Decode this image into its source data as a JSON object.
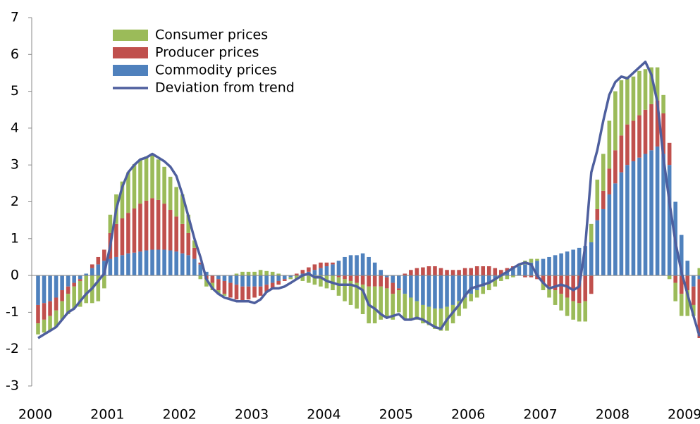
{
  "chart_data": {
    "type": "bar",
    "categories": [
      "2000",
      null,
      null,
      null,
      null,
      null,
      null,
      null,
      null,
      null,
      null,
      null,
      "2001",
      null,
      null,
      null,
      null,
      null,
      null,
      null,
      null,
      null,
      null,
      null,
      "2002",
      null,
      null,
      null,
      null,
      null,
      null,
      null,
      null,
      null,
      null,
      null,
      "2003",
      null,
      null,
      null,
      null,
      null,
      null,
      null,
      null,
      null,
      null,
      null,
      "2004",
      null,
      null,
      null,
      null,
      null,
      null,
      null,
      null,
      null,
      null,
      null,
      "2005",
      null,
      null,
      null,
      null,
      null,
      null,
      null,
      null,
      null,
      null,
      null,
      "2006",
      null,
      null,
      null,
      null,
      null,
      null,
      null,
      null,
      null,
      null,
      null,
      "2007",
      null,
      null,
      null,
      null,
      null,
      null,
      null,
      null,
      null,
      null,
      null,
      "2008",
      null,
      null,
      null,
      null,
      null,
      null,
      null,
      null,
      null,
      null,
      null,
      "2009",
      null,
      null
    ],
    "series": [
      {
        "name": "Consumer prices",
        "type": "bar",
        "color": "#9bbb59",
        "values": [
          -0.3,
          -0.35,
          -0.4,
          -0.45,
          -0.5,
          -0.55,
          -0.6,
          -0.7,
          -0.75,
          -0.75,
          -0.7,
          -0.35,
          0.5,
          0.8,
          1.0,
          1.1,
          1.2,
          1.2,
          1.2,
          1.2,
          1.1,
          1.0,
          0.9,
          0.8,
          0.8,
          0.5,
          0.2,
          -0.1,
          -0.2,
          -0.2,
          -0.1,
          -0.05,
          0,
          0.05,
          0.1,
          0.1,
          0.1,
          0.15,
          0.12,
          0.1,
          0.05,
          0,
          -0.05,
          -0.1,
          -0.15,
          -0.2,
          -0.25,
          -0.3,
          -0.35,
          -0.4,
          -0.5,
          -0.6,
          -0.65,
          -0.7,
          -0.8,
          -1.0,
          -1.0,
          -0.9,
          -0.8,
          -0.7,
          -0.6,
          -0.7,
          -0.6,
          -0.5,
          -0.5,
          -0.5,
          -0.55,
          -0.6,
          -0.65,
          -0.5,
          -0.4,
          -0.3,
          -0.2,
          -0.2,
          -0.2,
          -0.2,
          -0.2,
          -0.15,
          -0.1,
          -0.05,
          0.05,
          0.1,
          0.1,
          0.05,
          -0.2,
          -0.3,
          -0.4,
          -0.45,
          -0.5,
          -0.5,
          -0.5,
          -0.55,
          0.5,
          0.8,
          1.0,
          1.3,
          1.6,
          1.5,
          1.3,
          1.2,
          1.2,
          1.1,
          1.0,
          0.9,
          0.5,
          -0.1,
          -0.5,
          -0.6,
          -0.7,
          -0.3,
          0.2
        ]
      },
      {
        "name": "Producer prices",
        "type": "bar",
        "color": "#c0504d",
        "values": [
          -0.5,
          -0.45,
          -0.4,
          -0.35,
          -0.3,
          -0.2,
          -0.1,
          -0.05,
          0,
          0.1,
          0.2,
          0.3,
          0.7,
          0.9,
          1.0,
          1.1,
          1.2,
          1.3,
          1.35,
          1.4,
          1.35,
          1.25,
          1.1,
          0.95,
          0.8,
          0.6,
          0.3,
          0.05,
          -0.1,
          -0.2,
          -0.3,
          -0.35,
          -0.4,
          -0.4,
          -0.4,
          -0.35,
          -0.3,
          -0.25,
          -0.2,
          -0.15,
          -0.1,
          -0.05,
          0,
          0.05,
          0.1,
          0.12,
          0.15,
          0.15,
          0.1,
          0.05,
          -0.05,
          -0.1,
          -0.15,
          -0.2,
          -0.25,
          -0.3,
          -0.3,
          -0.3,
          -0.3,
          -0.3,
          -0.05,
          0.05,
          0.15,
          0.2,
          0.22,
          0.25,
          0.25,
          0.2,
          0.15,
          0.15,
          0.15,
          0.2,
          0.2,
          0.25,
          0.25,
          0.25,
          0.2,
          0.15,
          0.1,
          0.05,
          0,
          -0.05,
          -0.05,
          -0.1,
          -0.2,
          -0.3,
          -0.4,
          -0.5,
          -0.6,
          -0.7,
          -0.75,
          -0.7,
          -0.5,
          0.3,
          0.5,
          0.7,
          0.9,
          1.0,
          1.1,
          1.1,
          1.15,
          1.2,
          1.25,
          1.25,
          1.1,
          0.6,
          -0.2,
          -0.5,
          -0.4,
          -0.5,
          -1.6
        ]
      },
      {
        "name": "Commodity prices",
        "type": "bar",
        "color": "#4f81bd",
        "values": [
          -0.8,
          -0.75,
          -0.7,
          -0.6,
          -0.4,
          -0.3,
          -0.2,
          -0.1,
          0.05,
          0.2,
          0.3,
          0.4,
          0.45,
          0.5,
          0.55,
          0.6,
          0.62,
          0.65,
          0.68,
          0.7,
          0.7,
          0.7,
          0.68,
          0.65,
          0.6,
          0.55,
          0.45,
          0.3,
          0.1,
          0,
          -0.1,
          -0.15,
          -0.2,
          -0.25,
          -0.3,
          -0.3,
          -0.3,
          -0.3,
          -0.25,
          -0.2,
          -0.15,
          -0.1,
          -0.05,
          0,
          0.05,
          0.1,
          0.15,
          0.2,
          0.25,
          0.3,
          0.4,
          0.5,
          0.55,
          0.55,
          0.6,
          0.5,
          0.35,
          0.15,
          -0.05,
          -0.2,
          -0.35,
          -0.5,
          -0.6,
          -0.7,
          -0.8,
          -0.85,
          -0.9,
          -0.9,
          -0.85,
          -0.8,
          -0.7,
          -0.6,
          -0.5,
          -0.4,
          -0.3,
          -0.2,
          -0.1,
          0,
          0.1,
          0.2,
          0.25,
          0.3,
          0.35,
          0.4,
          0.45,
          0.5,
          0.55,
          0.6,
          0.65,
          0.7,
          0.75,
          0.8,
          0.9,
          1.5,
          1.8,
          2.2,
          2.5,
          2.8,
          3.0,
          3.1,
          3.2,
          3.3,
          3.4,
          3.5,
          3.3,
          3.0,
          2.0,
          1.1,
          0.4,
          -0.3,
          -0.1
        ]
      },
      {
        "name": "Deviation from trend",
        "type": "line",
        "color": "#4e5f9e",
        "values": [
          -1.7,
          -1.6,
          -1.5,
          -1.4,
          -1.2,
          -1.0,
          -0.9,
          -0.7,
          -0.5,
          -0.35,
          -0.15,
          0.05,
          0.8,
          1.8,
          2.4,
          2.8,
          3.0,
          3.15,
          3.2,
          3.3,
          3.2,
          3.1,
          2.95,
          2.7,
          2.2,
          1.6,
          1.0,
          0.5,
          -0.1,
          -0.35,
          -0.5,
          -0.6,
          -0.65,
          -0.7,
          -0.7,
          -0.7,
          -0.75,
          -0.65,
          -0.45,
          -0.35,
          -0.35,
          -0.3,
          -0.2,
          -0.1,
          0.0,
          0.05,
          -0.05,
          -0.05,
          -0.15,
          -0.2,
          -0.25,
          -0.25,
          -0.25,
          -0.3,
          -0.4,
          -0.8,
          -0.9,
          -1.05,
          -1.15,
          -1.1,
          -1.05,
          -1.2,
          -1.2,
          -1.15,
          -1.2,
          -1.3,
          -1.4,
          -1.45,
          -1.2,
          -1.0,
          -0.8,
          -0.55,
          -0.35,
          -0.3,
          -0.25,
          -0.2,
          -0.1,
          0.0,
          0.1,
          0.2,
          0.3,
          0.35,
          0.3,
          0.0,
          -0.2,
          -0.35,
          -0.3,
          -0.25,
          -0.3,
          -0.4,
          -0.3,
          0.8,
          2.8,
          3.4,
          4.2,
          4.9,
          5.25,
          5.4,
          5.35,
          5.5,
          5.65,
          5.8,
          5.45,
          4.7,
          3.2,
          2.0,
          0.9,
          0.1,
          -0.5,
          -1.1,
          -1.65
        ]
      }
    ],
    "ylim": [
      -3,
      7
    ],
    "yticks": [
      -3,
      -2,
      -1,
      0,
      1,
      2,
      3,
      4,
      5,
      6,
      7
    ],
    "legend": "upper-left"
  }
}
